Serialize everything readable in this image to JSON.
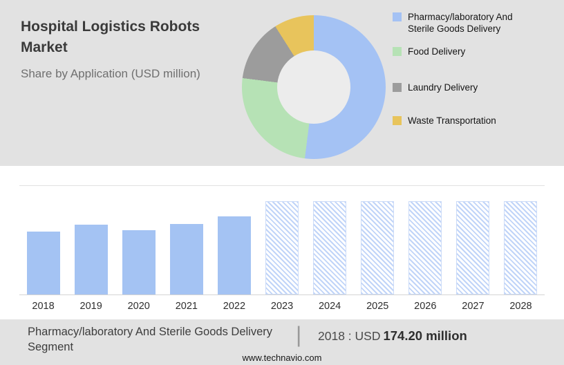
{
  "header": {
    "title": "Hospital Logistics Robots Market",
    "subtitle": "Share by Application (USD million)"
  },
  "footer": {
    "segment_label": "Pharmacy/laboratory And Sterile Goods Delivery Segment",
    "separator": "|",
    "year_prefix": "2018 : USD",
    "value": "174.20 million",
    "website": "www.technavio.com"
  },
  "colors": {
    "panel_background": "#e2e2e2",
    "bar_solid": "#a4c3f3",
    "bar_forecast_hatch": "#c0d4f8",
    "title_text": "#3a3a3a",
    "subtitle_text": "#6f6f6f"
  },
  "chart_data": [
    {
      "type": "pie",
      "donut": true,
      "title": "Share by Application (USD million)",
      "legend_position": "right",
      "units": "percent share (estimated from arc angles)",
      "segments": [
        {
          "label": "Pharmacy/laboratory And Sterile Goods Delivery",
          "value": 52,
          "color": "#a4c2f4"
        },
        {
          "label": "Food Delivery",
          "value": 25,
          "color": "#b6e2b5"
        },
        {
          "label": "Laundry Delivery",
          "value": 14,
          "color": "#9c9c9c"
        },
        {
          "label": "Waste Transportation",
          "value": 9,
          "color": "#e8c45c"
        }
      ]
    },
    {
      "type": "bar",
      "title": "Hospital Logistics Robots Market size by year (USD million)",
      "categories": [
        "2018",
        "2019",
        "2020",
        "2021",
        "2022",
        "2023",
        "2024",
        "2025",
        "2026",
        "2027",
        "2028"
      ],
      "values": [
        174.2,
        193,
        178,
        195,
        216,
        258,
        258,
        258,
        258,
        258,
        258
      ],
      "forecast_from_index": 5,
      "anchor": {
        "category": "2018",
        "label": "USD 174.20 million"
      },
      "xlabel": "",
      "ylabel": "",
      "ylim": [
        0,
        300
      ],
      "grid": "top and baseline only",
      "legend_position": "none"
    }
  ]
}
